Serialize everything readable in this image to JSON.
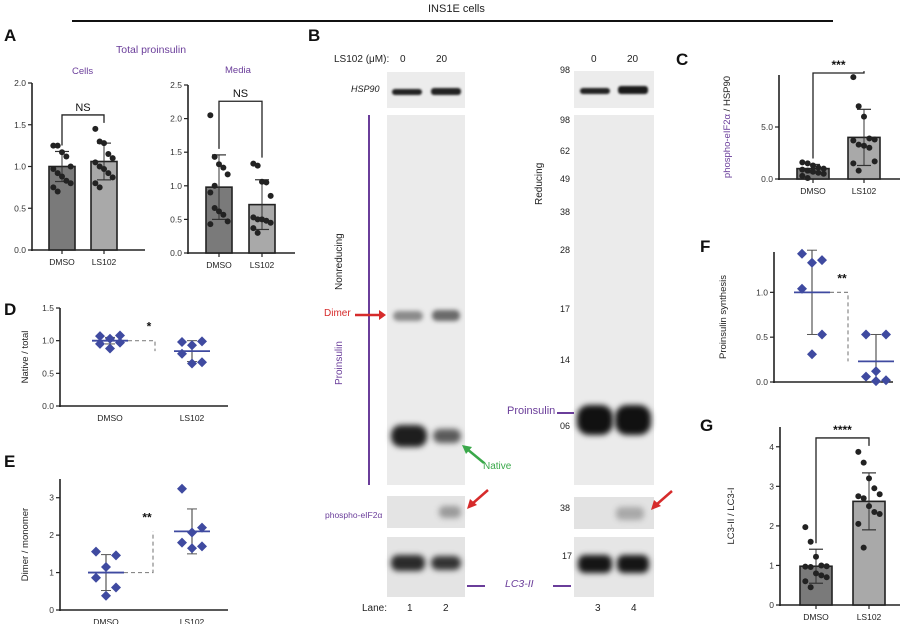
{
  "header": {
    "title": "INS1E cells"
  },
  "panels": {
    "A": {
      "letter": "A",
      "title": "Total proinsulin",
      "sub_cells": "Cells",
      "sub_media": "Media"
    },
    "B": {
      "letter": "B",
      "treatment_label": "LS102 (μM):",
      "doses": [
        "0",
        "20",
        "0",
        "20"
      ],
      "hsp90_label": "HSP90",
      "nonreducing_label": "Nonreducing",
      "reducing_label": "Reducing",
      "proinsulin_side_label": "Proinsulin",
      "dimer_label": "Dimer",
      "native_label": "Native",
      "proinsulin_band_label": "Proinsulin",
      "phospho_label": "phospho-eIF2α",
      "lc3_label": "LC3-II",
      "lane_label": "Lane:",
      "lanes": [
        "1",
        "2",
        "3",
        "4"
      ],
      "mw_markers_top": [
        "98"
      ],
      "mw_markers": [
        "98",
        "62",
        "49",
        "38",
        "28",
        "17",
        "14",
        "06"
      ],
      "mw_phospho": "38",
      "mw_lc3": "17"
    },
    "C": {
      "letter": "C"
    },
    "D": {
      "letter": "D"
    },
    "E": {
      "letter": "E"
    },
    "F": {
      "letter": "F"
    },
    "G": {
      "letter": "G"
    }
  },
  "colors": {
    "dark_bar": "#7a7a7a",
    "light_bar": "#a9a9a9",
    "diamond": "#3f4aa0",
    "purple": "#6a3d9a",
    "red": "#d62b2b",
    "green": "#3aa84a"
  },
  "chart_data": [
    {
      "id": "A-cells",
      "type": "bar",
      "title": "Cells",
      "categories": [
        "DMSO",
        "LS102"
      ],
      "values": [
        1.0,
        1.06
      ],
      "sd": [
        0.18,
        0.22
      ],
      "points": [
        [
          1.25,
          1.25,
          1.17,
          1.12,
          1.0,
          0.97,
          0.92,
          0.88,
          0.83,
          0.8,
          0.75,
          0.7
        ],
        [
          1.45,
          1.3,
          1.28,
          1.15,
          1.1,
          1.05,
          1.0,
          0.97,
          0.92,
          0.87,
          0.8,
          0.75
        ]
      ],
      "ylim": [
        0,
        2.0
      ],
      "yticks": [
        "0.0",
        "0.5",
        "1.0",
        "1.5",
        "2.0"
      ],
      "significance": "NS"
    },
    {
      "id": "A-media",
      "type": "bar",
      "title": "Media",
      "categories": [
        "DMSO",
        "LS102"
      ],
      "values": [
        0.98,
        0.72
      ],
      "sd": [
        0.48,
        0.37
      ],
      "points": [
        [
          2.05,
          1.43,
          1.32,
          1.27,
          1.17,
          0.9,
          0.67,
          0.62,
          0.57,
          0.47,
          0.43,
          1.0
        ],
        [
          1.33,
          1.3,
          1.06,
          1.05,
          0.85,
          0.53,
          0.5,
          0.5,
          0.48,
          0.45,
          0.37,
          0.3
        ]
      ],
      "ylim": [
        0,
        2.5
      ],
      "yticks": [
        "0.0",
        "0.5",
        "1.0",
        "1.5",
        "2.0",
        "2.5"
      ],
      "significance": "NS"
    },
    {
      "id": "C",
      "type": "bar",
      "ylabel_colored": "phospho-eIF2α",
      "ylabel_rest": " / HSP90",
      "categories": [
        "DMSO",
        "LS102"
      ],
      "values": [
        1.0,
        4.0
      ],
      "sd": [
        0.4,
        2.7
      ],
      "points": [
        [
          1.6,
          1.5,
          1.3,
          1.1,
          1.0,
          0.9,
          0.8,
          0.7,
          0.6,
          0.5,
          0.3,
          0.1
        ],
        [
          9.8,
          7.0,
          6.0,
          3.9,
          3.8,
          3.7,
          3.3,
          3.2,
          3.0,
          1.7,
          1.5,
          0.8
        ]
      ],
      "ylim": [
        0,
        10
      ],
      "yticks": [
        "0.0",
        "5.0"
      ],
      "significance": "***"
    },
    {
      "id": "D",
      "type": "scatter",
      "ylabel": "Native / total",
      "categories": [
        "DMSO",
        "LS102"
      ],
      "means": [
        1.0,
        0.84
      ],
      "sd": [
        0.05,
        0.16
      ],
      "points": [
        [
          1.07,
          1.08,
          1.03,
          0.95,
          0.97,
          0.88
        ],
        [
          0.98,
          0.99,
          0.93,
          0.8,
          0.67,
          0.65
        ]
      ],
      "ylim": [
        0,
        1.5
      ],
      "yticks": [
        "0.0",
        "0.5",
        "1.0",
        "1.5"
      ],
      "significance": "*"
    },
    {
      "id": "E",
      "type": "scatter",
      "ylabel": "Dimer / monomer",
      "categories": [
        "DMSO",
        "LS102"
      ],
      "means": [
        1.0,
        2.1
      ],
      "sd": [
        0.48,
        0.6
      ],
      "points": [
        [
          1.56,
          1.46,
          1.15,
          0.86,
          0.6,
          0.38
        ],
        [
          3.24,
          2.2,
          2.07,
          1.8,
          1.7,
          1.65
        ]
      ],
      "ylim": [
        0,
        3.5
      ],
      "yticks": [
        "0",
        "1",
        "2",
        "3"
      ],
      "significance": "**"
    },
    {
      "id": "F",
      "type": "scatter",
      "ylabel": "Proinsulin synthesis",
      "categories": [
        "DMSO",
        "LS102"
      ],
      "means": [
        1.0,
        0.23
      ],
      "sd": [
        0.47,
        0.3
      ],
      "points": [
        [
          1.43,
          1.36,
          1.33,
          1.04,
          0.53,
          0.31
        ],
        [
          0.53,
          0.53,
          0.12,
          0.06,
          0.02,
          0.01
        ]
      ],
      "ylim": [
        0,
        1.45
      ],
      "yticks": [
        "0.0",
        "0.5",
        "1.0"
      ],
      "significance": "**"
    },
    {
      "id": "G",
      "type": "bar",
      "ylabel": "LC3-II / LC3-I",
      "categories": [
        "DMSO",
        "LS102"
      ],
      "values": [
        0.98,
        2.62
      ],
      "sd": [
        0.43,
        0.72
      ],
      "points": [
        [
          1.97,
          1.6,
          1.22,
          1.0,
          0.98,
          0.97,
          0.96,
          0.8,
          0.75,
          0.7,
          0.6,
          0.45
        ],
        [
          3.87,
          3.6,
          3.2,
          2.95,
          2.8,
          2.75,
          2.7,
          2.5,
          2.35,
          2.3,
          2.05,
          1.45
        ]
      ],
      "ylim": [
        0,
        4.5
      ],
      "yticks": [
        "0",
        "1",
        "2",
        "3",
        "4"
      ],
      "significance": "****"
    }
  ]
}
